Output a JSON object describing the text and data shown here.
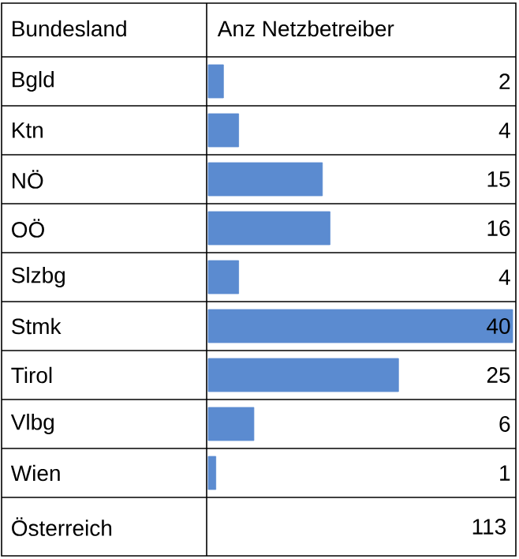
{
  "chart_data": {
    "type": "bar",
    "orientation": "horizontal",
    "ylabel": "Bundesland",
    "xlabel": "Anz Netzbetreiber",
    "categories": [
      "Bgld",
      "Ktn",
      "NÖ",
      "OÖ",
      "Slzbg",
      "Stmk",
      "Tirol",
      "Vlbg",
      "Wien"
    ],
    "values": [
      2,
      4,
      15,
      16,
      4,
      40,
      25,
      6,
      1
    ],
    "color": "#5b8bd0",
    "data_labels": true,
    "annotations": [
      "Österreich",
      "113"
    ]
  }
}
